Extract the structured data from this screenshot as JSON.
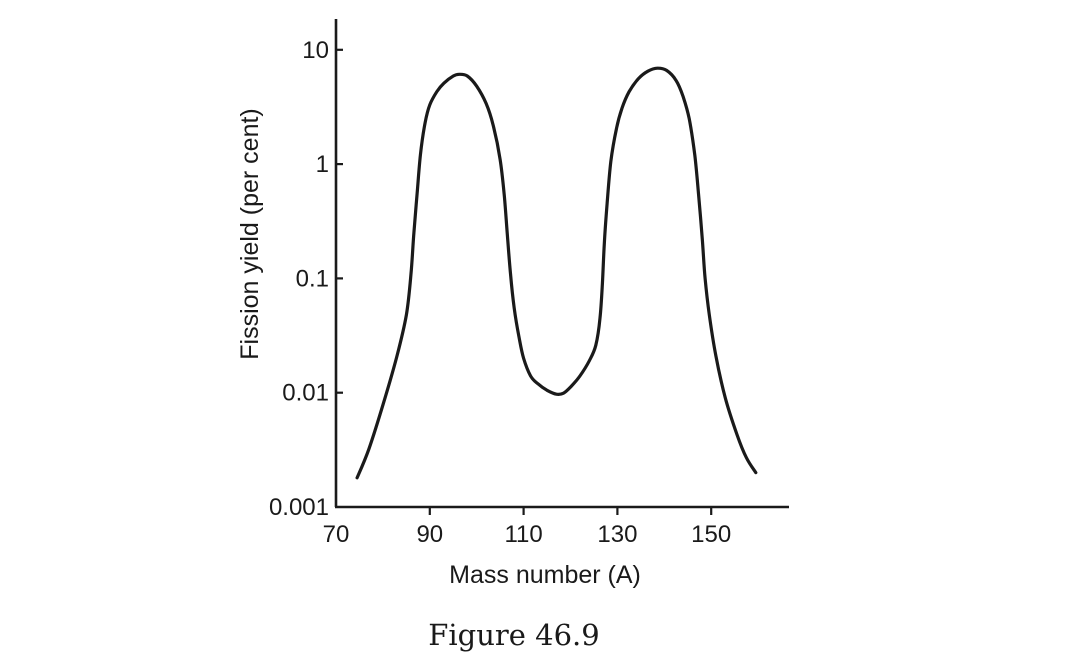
{
  "figure": {
    "caption": "Figure 46.9"
  },
  "chart_data": {
    "type": "line",
    "title": "",
    "xlabel": "Mass number (A)",
    "ylabel": "Fission yield (per cent)",
    "xlim": [
      70,
      168
    ],
    "ylim": [
      0.001,
      20
    ],
    "yscale": "log",
    "grid": false,
    "x_ticks": [
      70,
      90,
      110,
      130,
      150
    ],
    "x_tick_labels": [
      "70",
      "90",
      "110",
      "130",
      "150"
    ],
    "y_ticks": [
      0.001,
      0.01,
      0.1,
      1,
      10
    ],
    "y_tick_labels": [
      "0.001",
      "0.01",
      "0.1",
      "1",
      "10"
    ],
    "series": [
      {
        "x": [
          74.5,
          77,
          80,
          83,
          85,
          86,
          86.6,
          87.3,
          88,
          89,
          90,
          91.5,
          93,
          95,
          96.3,
          98,
          100,
          102,
          103.5,
          105,
          105.9,
          106.5,
          107.2,
          108,
          109,
          110,
          111.5,
          113,
          115,
          117,
          118.5,
          120,
          122,
          124,
          125.4,
          126.3,
          126.8,
          127.2,
          127.8,
          128.6,
          129.8,
          131,
          132.5,
          134.5,
          136.5,
          138.5,
          140.5,
          142.5,
          144,
          145.3,
          146.5,
          147.3,
          148.1,
          148.7,
          149.6,
          151,
          153,
          155.5,
          157.5,
          159.5
        ],
        "y": [
          0.0018,
          0.0032,
          0.0078,
          0.021,
          0.048,
          0.11,
          0.25,
          0.55,
          1.2,
          2.3,
          3.3,
          4.3,
          5.1,
          5.9,
          6.1,
          5.9,
          4.8,
          3.4,
          2.2,
          1.1,
          0.52,
          0.25,
          0.11,
          0.055,
          0.031,
          0.02,
          0.014,
          0.012,
          0.0105,
          0.0097,
          0.0099,
          0.0112,
          0.014,
          0.019,
          0.026,
          0.045,
          0.09,
          0.2,
          0.45,
          1.05,
          2.05,
          3.1,
          4.3,
          5.6,
          6.5,
          6.9,
          6.6,
          5.4,
          3.9,
          2.5,
          1.2,
          0.55,
          0.22,
          0.1,
          0.048,
          0.021,
          0.009,
          0.0043,
          0.0027,
          0.002
        ]
      }
    ]
  }
}
